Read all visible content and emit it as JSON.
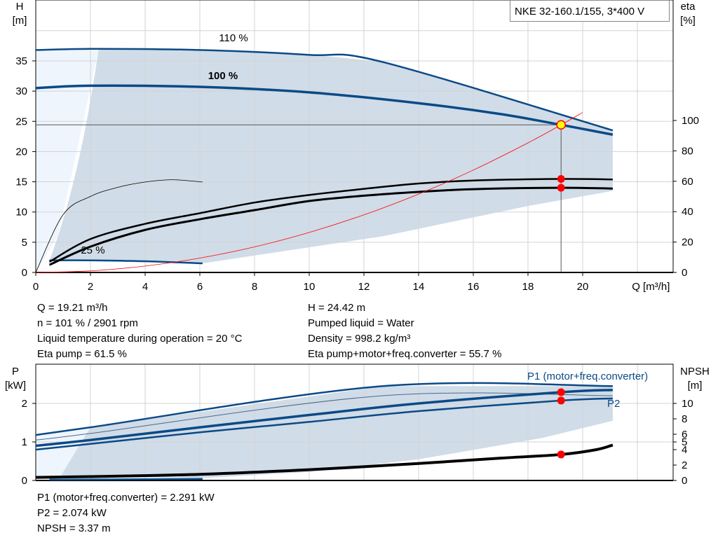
{
  "title": "NKE 32-160.1/155, 3*400 V",
  "colors": {
    "curve_blue": "#0b4a86",
    "shade": "#d0dce8",
    "shade_light": "#eef5fd",
    "system": "#ff0000",
    "point": "#ff0000",
    "op_point_fill": "#ffff00",
    "grid": "#d3d3d3"
  },
  "chart_data": [
    {
      "type": "line",
      "title": "",
      "xlabel": "Q [m³/h]",
      "ylabel": "H\n[m]",
      "ylabel_lines": [
        "H",
        "[m]"
      ],
      "y2label_lines": [
        "eta",
        "[%]"
      ],
      "xlim": [
        0,
        23.3
      ],
      "ylim": [
        0,
        45
      ],
      "y2lim": [
        0,
        179
      ],
      "xticks": [
        0,
        2,
        4,
        6,
        8,
        10,
        12,
        14,
        16,
        18,
        20
      ],
      "yticks": [
        0,
        5,
        10,
        15,
        20,
        25,
        30,
        35
      ],
      "y2ticks": [
        0,
        20,
        40,
        60,
        80,
        100
      ],
      "grid": true,
      "series": [
        {
          "name": "110 %",
          "axis": "H",
          "x": [
            0,
            2.3,
            6,
            10,
            12.7,
            21.1
          ],
          "y": [
            36.8,
            37,
            36.8,
            36,
            34.8,
            23.5
          ]
        },
        {
          "name": "100 %",
          "axis": "H",
          "x": [
            0,
            2,
            6,
            10,
            14,
            17,
            19.21,
            21.1
          ],
          "y": [
            30.5,
            30.9,
            30.7,
            29.8,
            28,
            26.2,
            24.42,
            22.8
          ]
        },
        {
          "name": "25 %",
          "axis": "H",
          "x": [
            0.5,
            2,
            4,
            6.1
          ],
          "y": [
            2.0,
            2.0,
            1.85,
            1.5
          ]
        },
        {
          "name": "",
          "axis": "eta",
          "x": [
            0.5,
            2,
            4,
            6,
            8,
            10,
            12,
            14,
            16,
            19.21,
            21.1
          ],
          "y": [
            7,
            22,
            32,
            39,
            46,
            51,
            55,
            58.5,
            60.5,
            61.5,
            61.2
          ]
        },
        {
          "name": "",
          "axis": "eta",
          "x": [
            0.5,
            2,
            4,
            6,
            8,
            10,
            12,
            14,
            16,
            19.21,
            21.1
          ],
          "y": [
            5,
            17,
            28,
            35,
            41,
            47,
            50.5,
            53,
            54.8,
            55.7,
            55.2
          ]
        },
        {
          "name": "",
          "axis": "eta",
          "x": [
            0,
            1,
            2,
            3,
            4,
            5,
            6.1
          ],
          "y": [
            0,
            38,
            50,
            56,
            59.5,
            61,
            59.5
          ]
        },
        {
          "name": "",
          "axis": "H",
          "type": "system",
          "x": [
            0,
            2,
            4,
            6,
            8,
            10,
            12,
            14,
            16,
            18,
            19.21,
            20
          ],
          "y": [
            0,
            0.26,
            1.06,
            2.38,
            4.23,
            6.62,
            9.53,
            12.97,
            16.94,
            21.44,
            24.42,
            26.47
          ]
        }
      ],
      "operating_point": {
        "Q": 19.21,
        "H": 24.42,
        "eta_pump": 61.5,
        "eta_total": 55.7
      },
      "annotations": [
        "110 %",
        "100 %",
        "25 %"
      ]
    },
    {
      "type": "line",
      "title": "",
      "ylabel_lines": [
        "P",
        "[kW]"
      ],
      "y2label_lines": [
        "NPSH",
        "[m]"
      ],
      "xlim": [
        0,
        23.3
      ],
      "ylim": [
        0,
        3
      ],
      "y2lim": [
        0,
        15
      ],
      "yticks": [
        0,
        1,
        2
      ],
      "y2ticks": [
        0,
        2,
        4,
        5,
        6,
        8,
        10
      ],
      "grid": true,
      "series": [
        {
          "name": "",
          "axis": "P",
          "x": [
            0,
            2,
            12.7,
            21.1
          ],
          "y": [
            1.18,
            1.38,
            2.45,
            2.45
          ]
        },
        {
          "name": "",
          "axis": "P",
          "x": [
            0,
            2,
            12.7,
            21.1
          ],
          "y": [
            1.05,
            1.22,
            2.2,
            2.2
          ]
        },
        {
          "name": "P1 (motor+freq.converter)",
          "axis": "P",
          "x": [
            0,
            2,
            6,
            10,
            14,
            19.21,
            21.1
          ],
          "y": [
            0.9,
            1.05,
            1.38,
            1.7,
            2.0,
            2.291,
            2.35
          ]
        },
        {
          "name": "P2",
          "axis": "P",
          "x": [
            0,
            2,
            6,
            10,
            14,
            19.21,
            21.1
          ],
          "y": [
            0.8,
            0.95,
            1.25,
            1.52,
            1.8,
            2.074,
            2.13
          ]
        },
        {
          "name": "",
          "axis": "NPSH",
          "x": [
            0,
            2,
            6,
            10,
            14,
            17,
            19.21,
            20.5,
            21.1
          ],
          "y": [
            0.4,
            0.5,
            0.8,
            1.4,
            2.2,
            2.9,
            3.37,
            4.0,
            4.6
          ]
        }
      ],
      "operating_point": {
        "P1": 2.291,
        "P2": 2.074,
        "NPSH": 3.37
      }
    }
  ],
  "info_top": {
    "left": [
      "Q = 19.21 m³/h",
      "n = 101 % / 2901 rpm",
      "Liquid temperature during operation = 20 °C",
      "Eta pump = 61.5 %"
    ],
    "right": [
      "H = 24.42 m",
      "Pumped liquid = Water",
      "Density = 998.2 kg/m³",
      "Eta pump+motor+freq.converter = 55.7 %"
    ]
  },
  "info_bottom": [
    "P1 (motor+freq.converter) = 2.291 kW",
    "P2 = 2.074 kW",
    "NPSH = 3.37 m"
  ]
}
